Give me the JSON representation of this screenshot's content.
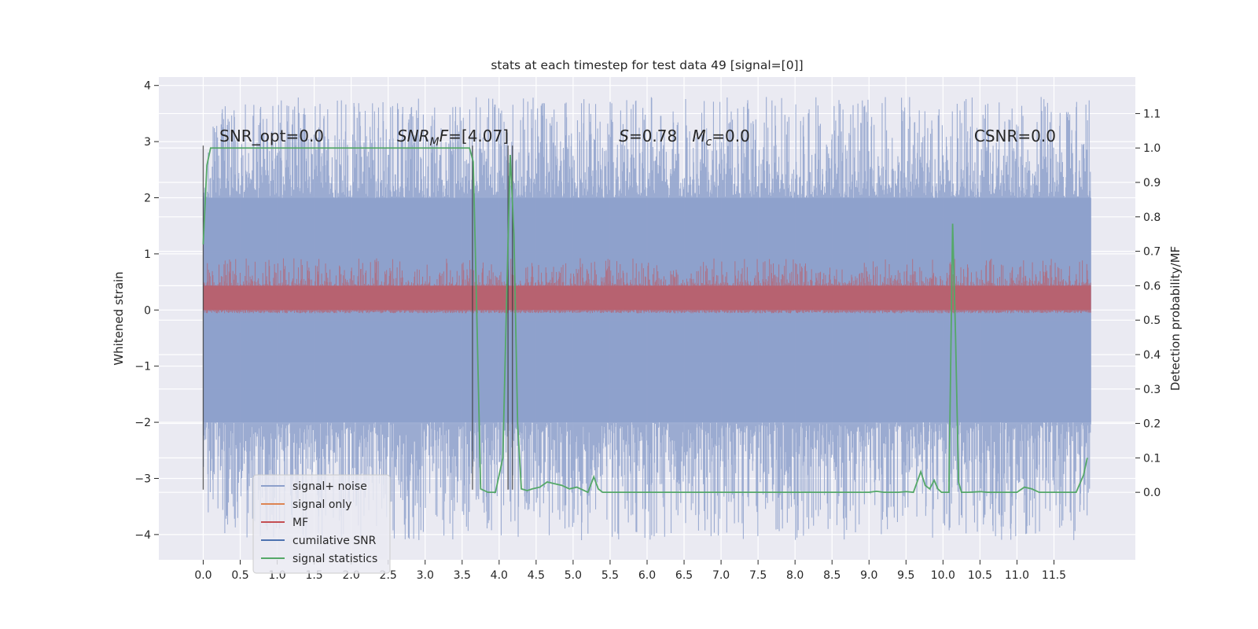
{
  "chart_data": {
    "type": "line",
    "title": "stats at each timestep for test data 49 [signal=[0]]",
    "xlabel": "",
    "ylabel": "Whitened strain",
    "y2label": "Detection probability/MF",
    "xlim": [
      -0.6,
      12.6
    ],
    "ylim": [
      -4.45,
      4.15
    ],
    "y2lim": [
      -0.196,
      1.206
    ],
    "x_ticks": [
      0.0,
      0.5,
      1.0,
      1.5,
      2.0,
      2.5,
      3.0,
      3.5,
      4.0,
      4.5,
      5.0,
      5.5,
      6.0,
      6.5,
      7.0,
      7.5,
      8.0,
      8.5,
      9.0,
      9.5,
      10.0,
      10.5,
      11.0,
      11.5
    ],
    "x_tick_labels": [
      "0.0",
      "0.5",
      "1.0",
      "1.5",
      "2.0",
      "2.5",
      "3.0",
      "3.5",
      "4.0",
      "4.5",
      "5.0",
      "5.5",
      "6.0",
      "6.5",
      "7.0",
      "7.5",
      "8.0",
      "8.5",
      "9.0",
      "9.5",
      "10.0",
      "10.5",
      "11.0",
      "11.5"
    ],
    "y_ticks": [
      -4,
      -3,
      -2,
      -1,
      0,
      1,
      2,
      3,
      4
    ],
    "y_tick_labels": [
      "−4",
      "−3",
      "−2",
      "−1",
      "0",
      "1",
      "2",
      "3",
      "4"
    ],
    "y2_ticks": [
      0.0,
      0.1,
      0.2,
      0.3,
      0.4,
      0.5,
      0.6,
      0.7,
      0.8,
      0.9,
      1.0,
      1.1
    ],
    "y2_tick_labels": [
      "0.0",
      "0.1",
      "0.2",
      "0.3",
      "0.4",
      "0.5",
      "0.6",
      "0.7",
      "0.8",
      "0.9",
      "1.0",
      "1.1"
    ],
    "grid": true,
    "legend_position": "lower-left",
    "noise_band": {
      "series": "signal+ noise",
      "x_range": [
        0.0,
        12.0
      ],
      "typical_range": [
        -2.0,
        2.0
      ],
      "extreme_range": [
        -4.1,
        3.8
      ],
      "color": "#8da0cb"
    },
    "mf_band": {
      "series": "MF",
      "axis": "secondary",
      "x_range": [
        0.0,
        12.0
      ],
      "typical_range": [
        0.53,
        0.6
      ],
      "peak_max": 0.68,
      "color": "#c44e52"
    },
    "annotations": [
      {
        "text": "SNR_opt=0.0",
        "x": 0.22,
        "y": 3.0
      },
      {
        "text": "SNR_MF=[4.07]",
        "x": 2.62,
        "y": 3.0
      },
      {
        "text": "S=0.78   M_c=0.0",
        "x": 5.62,
        "y": 3.0
      },
      {
        "text": "CSNR=0.0",
        "x": 10.42,
        "y": 3.0
      }
    ],
    "vertical_markers": [
      {
        "x": 0.0,
        "ymin": -3.2,
        "ymax": 2.93
      },
      {
        "x": 3.64,
        "ymin": -3.2,
        "ymax": 2.93
      },
      {
        "x": 4.12,
        "ymin": -3.2,
        "ymax": 2.93
      },
      {
        "x": 4.18,
        "ymin": -3.2,
        "ymax": 2.93
      }
    ],
    "series": [
      {
        "name": "signal+ noise",
        "color": "#8da0cb"
      },
      {
        "name": "signal only",
        "color": "#dd8452"
      },
      {
        "name": "MF",
        "color": "#c44e52"
      },
      {
        "name": "cumilative SNR",
        "color": "#4c72b0"
      },
      {
        "name": "signal statistics",
        "color": "#55a868",
        "axis": "secondary",
        "x": [
          0.0,
          0.05,
          0.1,
          0.2,
          0.5,
          1.0,
          2.0,
          3.0,
          3.45,
          3.55,
          3.6,
          3.65,
          3.7,
          3.75,
          3.85,
          3.95,
          4.05,
          4.1,
          4.15,
          4.2,
          4.25,
          4.3,
          4.38,
          4.45,
          4.55,
          4.65,
          4.75,
          4.85,
          4.95,
          5.05,
          5.15,
          5.2,
          5.28,
          5.34,
          5.4,
          5.5,
          6.0,
          7.0,
          8.0,
          8.5,
          9.0,
          9.1,
          9.2,
          9.4,
          9.5,
          9.6,
          9.7,
          9.76,
          9.82,
          9.88,
          9.93,
          9.98,
          10.03,
          10.08,
          10.13,
          10.17,
          10.21,
          10.25,
          10.35,
          10.5,
          10.6,
          10.75,
          10.9,
          11.0,
          11.1,
          11.2,
          11.3,
          11.4,
          11.6,
          11.8,
          11.9,
          11.95
        ],
        "values": [
          0.72,
          0.95,
          1.0,
          1.0,
          1.0,
          1.0,
          1.0,
          1.0,
          1.0,
          1.0,
          1.0,
          0.96,
          0.5,
          0.01,
          0.0,
          0.0,
          0.1,
          0.55,
          0.98,
          0.75,
          0.2,
          0.01,
          0.005,
          0.01,
          0.015,
          0.03,
          0.025,
          0.02,
          0.01,
          0.015,
          0.005,
          0.0,
          0.045,
          0.01,
          0.0,
          0.0,
          0.0,
          0.0,
          0.0,
          0.0,
          0.0,
          0.003,
          0.0,
          0.0,
          0.002,
          0.0,
          0.06,
          0.02,
          0.01,
          0.035,
          0.01,
          0.0,
          0.0,
          0.0,
          0.78,
          0.45,
          0.03,
          0.0,
          0.0,
          0.002,
          0.0,
          0.0,
          0.0,
          0.0,
          0.015,
          0.01,
          0.0,
          0.0,
          0.0,
          0.0,
          0.05,
          0.1
        ]
      }
    ]
  }
}
